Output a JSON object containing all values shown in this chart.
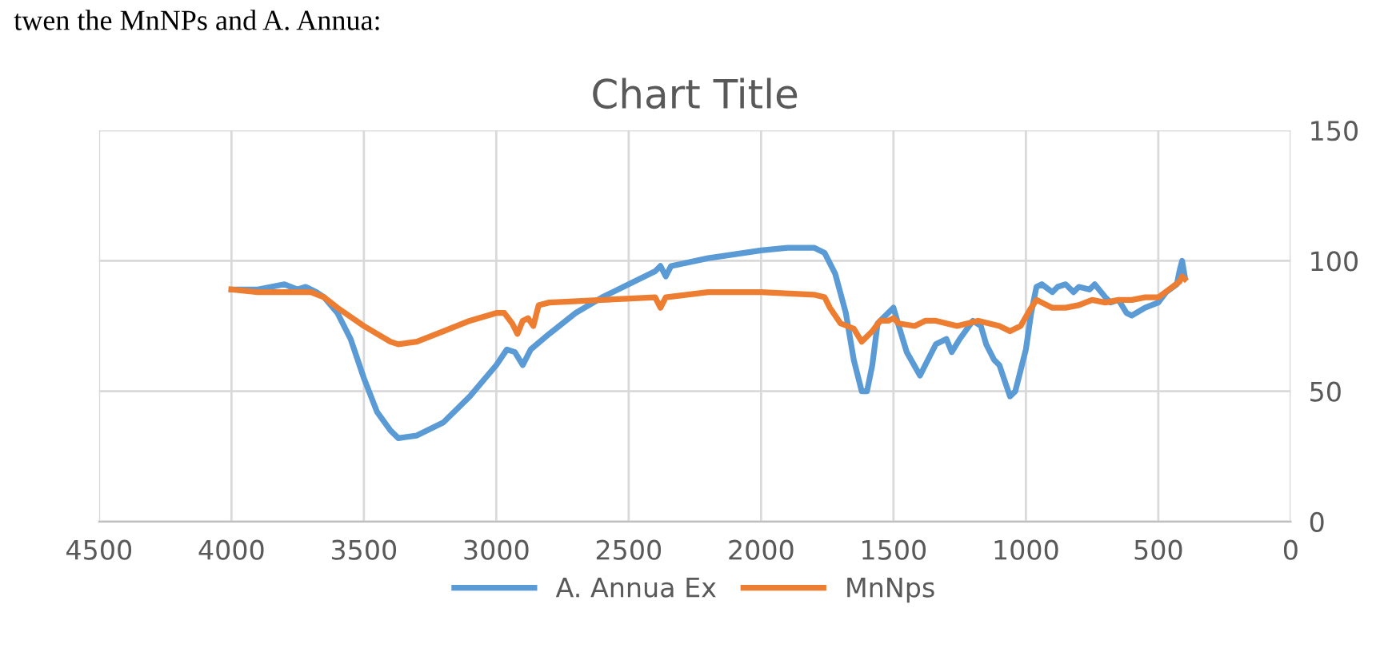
{
  "chart_data": {
    "type": "line",
    "title": "Chart Title",
    "annotations": [
      "twen the MnNPs and A. Annua:"
    ],
    "xlim": [
      4500,
      0
    ],
    "xticks": [
      4500,
      4000,
      3500,
      3000,
      2500,
      2000,
      1500,
      1000,
      500,
      0
    ],
    "ylim": [
      0,
      150
    ],
    "yticks": [
      0,
      50,
      100,
      150
    ],
    "grid": true,
    "legend": "bottom",
    "marker": "none",
    "line_style": "solid",
    "series": [
      {
        "name": "A. Annua Ex",
        "color": "#5b9bd5",
        "x": [
          4000,
          3900,
          3850,
          3800,
          3750,
          3720,
          3680,
          3650,
          3600,
          3550,
          3500,
          3450,
          3400,
          3370,
          3300,
          3200,
          3100,
          3000,
          2960,
          2930,
          2900,
          2870,
          2800,
          2700,
          2600,
          2500,
          2400,
          2380,
          2360,
          2340,
          2200,
          2000,
          1900,
          1800,
          1760,
          1720,
          1680,
          1650,
          1620,
          1600,
          1580,
          1560,
          1520,
          1500,
          1480,
          1450,
          1400,
          1380,
          1340,
          1300,
          1280,
          1250,
          1200,
          1170,
          1150,
          1120,
          1100,
          1080,
          1060,
          1040,
          1020,
          1000,
          980,
          960,
          940,
          900,
          880,
          850,
          820,
          800,
          760,
          740,
          700,
          680,
          650,
          620,
          600,
          550,
          500,
          470,
          430,
          420,
          410,
          400
        ],
        "values": [
          89,
          89,
          90,
          91,
          89,
          90,
          88,
          86,
          80,
          70,
          55,
          42,
          35,
          32,
          33,
          38,
          48,
          60,
          66,
          65,
          60,
          66,
          72,
          80,
          86,
          91,
          96,
          98,
          94,
          98,
          101,
          104,
          105,
          105,
          103,
          95,
          80,
          62,
          50,
          50,
          60,
          76,
          80,
          82,
          75,
          65,
          56,
          60,
          68,
          70,
          65,
          70,
          77,
          75,
          68,
          62,
          60,
          54,
          48,
          50,
          58,
          66,
          80,
          90,
          91,
          88,
          90,
          91,
          88,
          90,
          89,
          91,
          86,
          84,
          85,
          80,
          79,
          82,
          84,
          88,
          91,
          96,
          100,
          94
        ]
      },
      {
        "name": "MnNps",
        "color": "#ed7d31",
        "x": [
          4000,
          3900,
          3800,
          3700,
          3650,
          3600,
          3500,
          3400,
          3370,
          3300,
          3200,
          3100,
          3000,
          2970,
          2940,
          2920,
          2900,
          2880,
          2860,
          2840,
          2800,
          2600,
          2400,
          2380,
          2360,
          2200,
          2000,
          1800,
          1760,
          1740,
          1700,
          1650,
          1620,
          1580,
          1550,
          1520,
          1500,
          1480,
          1420,
          1380,
          1340,
          1300,
          1260,
          1220,
          1180,
          1100,
          1060,
          1020,
          980,
          960,
          940,
          900,
          850,
          800,
          750,
          700,
          650,
          600,
          550,
          500,
          460,
          420,
          410,
          400
        ],
        "values": [
          89,
          88,
          88,
          88,
          86,
          82,
          75,
          69,
          68,
          69,
          73,
          77,
          80,
          80,
          76,
          72,
          77,
          78,
          75,
          83,
          84,
          85,
          86,
          82,
          86,
          88,
          88,
          87,
          86,
          82,
          76,
          74,
          69,
          73,
          77,
          77,
          78,
          76,
          75,
          77,
          77,
          76,
          75,
          76,
          77,
          75,
          73,
          75,
          82,
          85,
          84,
          82,
          82,
          83,
          85,
          84,
          85,
          85,
          86,
          86,
          89,
          92,
          94,
          93
        ]
      }
    ]
  }
}
